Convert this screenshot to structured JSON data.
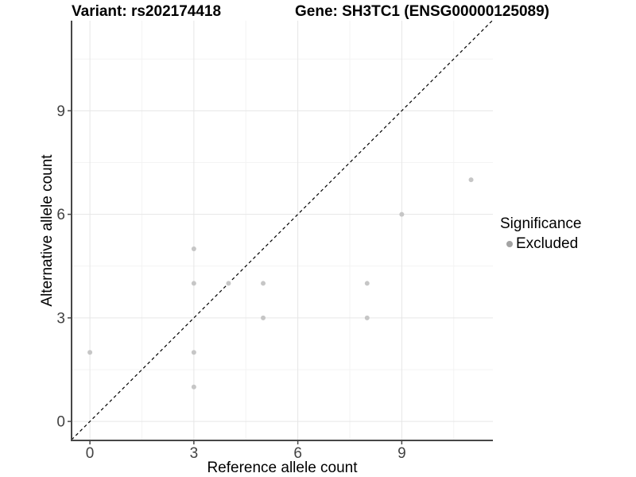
{
  "header": {
    "title_left": "Variant: rs202174418",
    "title_right": "Gene: SH3TC1 (ENSG00000125089)"
  },
  "chart_data": {
    "type": "scatter",
    "title": "Variant: rs202174418  /  Gene: SH3TC1 (ENSG00000125089)",
    "xlabel": "Reference allele count",
    "ylabel": "Alternative allele count",
    "xlim": [
      -0.53,
      11.63
    ],
    "ylim": [
      -0.55,
      11.61
    ],
    "xticks": [
      0,
      3,
      6,
      9
    ],
    "yticks": [
      0,
      3,
      6,
      9
    ],
    "minor_ticks_x": [
      1.5,
      4.5,
      7.5,
      10.5
    ],
    "minor_ticks_y": [
      1.5,
      4.5,
      7.5,
      10.5
    ],
    "grid": "on",
    "points": [
      [
        0,
        2
      ],
      [
        3,
        1
      ],
      [
        3,
        2
      ],
      [
        3,
        4
      ],
      [
        3,
        5
      ],
      [
        4,
        4
      ],
      [
        5,
        3
      ],
      [
        5,
        4
      ],
      [
        8,
        3
      ],
      [
        8,
        4
      ],
      [
        9,
        6
      ],
      [
        11,
        7
      ]
    ],
    "identity_line": {
      "slope": 1,
      "intercept": 0,
      "style": "dashed",
      "color": "#000000"
    },
    "legend": {
      "title": "Significance",
      "position": "right",
      "items": [
        {
          "label": "Excluded",
          "color": "#a3a3a3"
        }
      ]
    },
    "colors": {
      "point_fill": "#c6c6c6",
      "grid_major": "#e6e6e6",
      "grid_minor": "#f3f3f3",
      "axis_line": "#474747",
      "tick_text": "#424242"
    }
  }
}
